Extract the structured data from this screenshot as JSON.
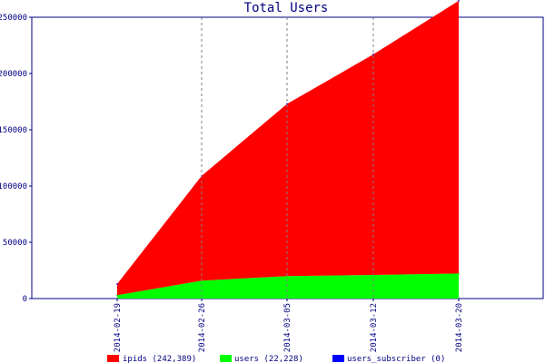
{
  "chart_data": {
    "type": "area",
    "title": "Total Users",
    "xlabel": "",
    "ylabel": "",
    "x": [
      "2014-02-19",
      "2014-02-26",
      "2014-03-05",
      "2014-03-12",
      "2014-03-20"
    ],
    "ylim": [
      0,
      250000
    ],
    "yticks": [
      0,
      50000,
      100000,
      150000,
      200000,
      250000
    ],
    "stacked": true,
    "series": [
      {
        "name": "users (22,228)",
        "color": "#00ff00",
        "values": [
          3000,
          16000,
          20000,
          21000,
          22228
        ]
      },
      {
        "name": "ipids (242,389)",
        "color": "#ff0000",
        "values": [
          10000,
          93000,
          153000,
          196000,
          242389
        ]
      },
      {
        "name": "users_subscriber (0)",
        "color": "#0000ff",
        "values": [
          0,
          0,
          0,
          0,
          0
        ]
      }
    ],
    "legend": [
      {
        "label": "ipids (242,389)",
        "color": "#ff0000"
      },
      {
        "label": "users (22,228)",
        "color": "#00ff00"
      },
      {
        "label": "users_subscriber (0)",
        "color": "#0000ff"
      }
    ],
    "grid": "vertical-dashed",
    "legend_position": "bottom"
  }
}
